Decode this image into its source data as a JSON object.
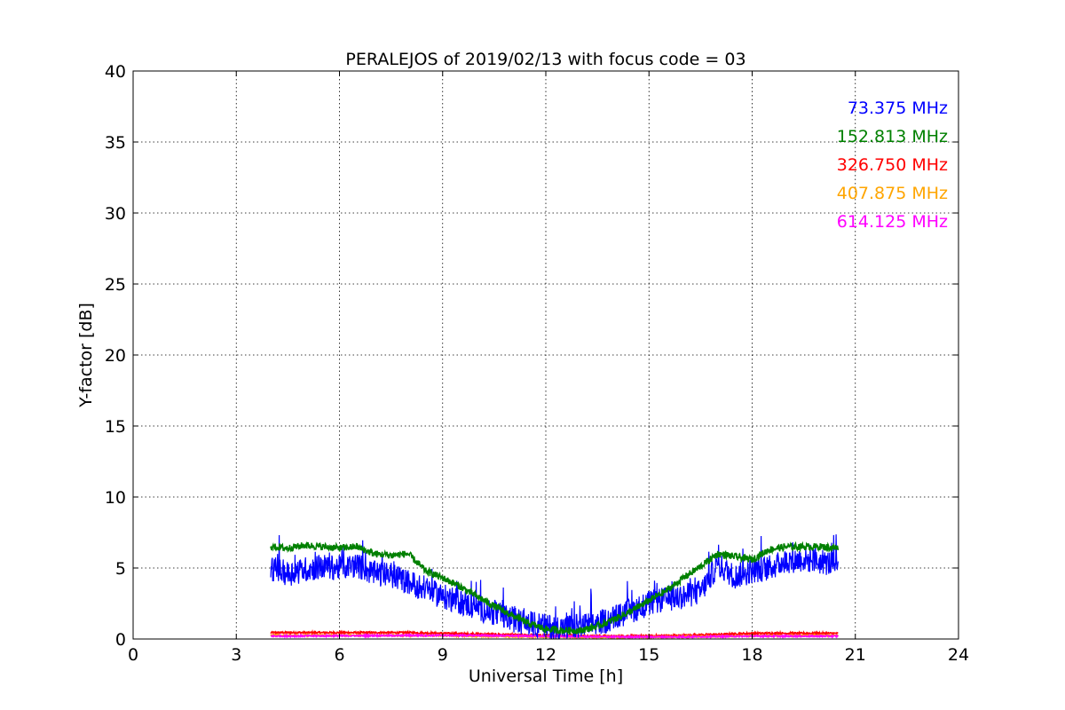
{
  "chart_data": {
    "type": "line",
    "title": "PERALEJOS of 2019/02/13 with focus code = 03",
    "xlabel": "Universal Time [h]",
    "ylabel": "Y-factor [dB]",
    "xlim": [
      0,
      24
    ],
    "ylim": [
      0,
      40
    ],
    "xticks": [
      "0",
      "3",
      "6",
      "9",
      "12",
      "15",
      "18",
      "21",
      "24"
    ],
    "yticks": [
      "0",
      "5",
      "10",
      "15",
      "20",
      "25",
      "30",
      "35",
      "40"
    ],
    "grid": true,
    "legend_placement": "top-right",
    "series": [
      {
        "name": "73.375 MHz",
        "color": "#0000ff",
        "noise": 0.9,
        "x": [
          4.0,
          4.5,
          5.0,
          5.5,
          6.0,
          6.5,
          7.0,
          7.5,
          8.0,
          8.5,
          9.0,
          9.5,
          10.0,
          10.5,
          11.0,
          11.5,
          12.0,
          12.5,
          13.0,
          13.5,
          14.0,
          14.5,
          15.0,
          15.5,
          16.0,
          16.5,
          17.0,
          17.5,
          18.0,
          18.5,
          19.0,
          19.5,
          20.0,
          20.5
        ],
        "y": [
          5.0,
          4.6,
          4.9,
          5.1,
          5.0,
          5.2,
          4.6,
          4.5,
          4.0,
          3.5,
          3.0,
          2.6,
          2.2,
          1.8,
          1.4,
          1.1,
          0.9,
          0.8,
          0.9,
          1.1,
          1.5,
          2.0,
          2.5,
          2.8,
          3.0,
          3.3,
          5.2,
          4.4,
          4.8,
          5.0,
          5.5,
          5.6,
          5.4,
          5.3
        ]
      },
      {
        "name": "152.813 MHz",
        "color": "#008000",
        "noise": 0.25,
        "x": [
          4.0,
          4.5,
          5.0,
          5.5,
          6.0,
          6.5,
          7.0,
          7.5,
          8.0,
          8.5,
          9.0,
          9.5,
          10.0,
          10.5,
          11.0,
          11.5,
          12.0,
          12.5,
          13.0,
          13.5,
          14.0,
          14.5,
          15.0,
          15.5,
          16.0,
          16.5,
          17.0,
          17.5,
          18.0,
          18.5,
          19.0,
          19.5,
          20.0,
          20.5
        ],
        "y": [
          6.5,
          6.4,
          6.6,
          6.5,
          6.4,
          6.5,
          6.0,
          5.9,
          6.0,
          4.8,
          4.3,
          3.7,
          3.0,
          2.3,
          1.7,
          1.1,
          0.7,
          0.6,
          0.6,
          0.9,
          1.4,
          2.0,
          2.7,
          3.4,
          4.3,
          5.1,
          6.0,
          5.8,
          5.6,
          6.3,
          6.5,
          6.5,
          6.5,
          6.4
        ]
      },
      {
        "name": "326.750 MHz",
        "color": "#ff0000",
        "noise": 0.06,
        "x": [
          4.0,
          6.0,
          8.0,
          10.0,
          12.0,
          14.0,
          16.0,
          18.0,
          20.5
        ],
        "y": [
          0.45,
          0.45,
          0.45,
          0.35,
          0.25,
          0.2,
          0.25,
          0.4,
          0.4
        ]
      },
      {
        "name": "407.875 MHz",
        "color": "#ffa500",
        "noise": 0.05,
        "x": [
          4.0,
          6.0,
          8.0,
          10.0,
          12.0,
          14.0,
          16.0,
          18.0,
          20.5
        ],
        "y": [
          0.25,
          0.25,
          0.25,
          0.2,
          0.15,
          0.12,
          0.15,
          0.22,
          0.25
        ]
      },
      {
        "name": "614.125 MHz",
        "color": "#ff00ff",
        "noise": 0.05,
        "x": [
          4.0,
          6.0,
          8.0,
          10.0,
          12.0,
          14.0,
          16.0,
          18.0,
          20.5
        ],
        "y": [
          0.2,
          0.22,
          0.25,
          0.25,
          0.2,
          0.15,
          0.15,
          0.2,
          0.2
        ]
      }
    ]
  }
}
